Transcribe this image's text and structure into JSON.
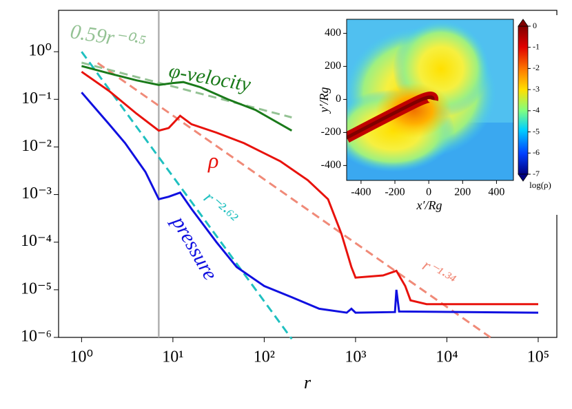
{
  "chart_data": [
    {
      "type": "line",
      "xlabel": "r",
      "xscale": "log",
      "yscale": "log",
      "xlim": [
        0.56,
        160000
      ],
      "ylim": [
        1e-06,
        7.4
      ],
      "xticks": [
        {
          "value": 1,
          "label": "10⁰"
        },
        {
          "value": 10,
          "label": "10¹"
        },
        {
          "value": 100,
          "label": "10²"
        },
        {
          "value": 1000,
          "label": "10³"
        },
        {
          "value": 10000,
          "label": "10⁴"
        },
        {
          "value": 100000,
          "label": "10⁵"
        }
      ],
      "yticks": [
        {
          "value": 1e-06,
          "label": "10⁻⁶"
        },
        {
          "value": 1e-05,
          "label": "10⁻⁵"
        },
        {
          "value": 0.0001,
          "label": "10⁻⁴"
        },
        {
          "value": 0.001,
          "label": "10⁻³"
        },
        {
          "value": 0.01,
          "label": "10⁻²"
        },
        {
          "value": 0.1,
          "label": "10⁻¹"
        },
        {
          "value": 1,
          "label": "10⁰"
        }
      ],
      "vline": {
        "x": 7,
        "color": "#b0b0b0"
      },
      "series": [
        {
          "name": "φ-velocity",
          "color": "#1a7a1a",
          "style": "solid",
          "x": [
            1,
            2,
            4,
            7,
            10,
            13,
            20,
            40,
            80,
            200
          ],
          "values": [
            0.5,
            0.35,
            0.25,
            0.2,
            0.22,
            0.23,
            0.18,
            0.1,
            0.06,
            0.022
          ]
        },
        {
          "name": "ρ",
          "color": "#e8120c",
          "style": "solid",
          "x": [
            1,
            2,
            4,
            7,
            9,
            12,
            16,
            30,
            60,
            150,
            300,
            500,
            700,
            900,
            1000,
            2000,
            2800,
            3500,
            4000,
            6000,
            100000
          ],
          "values": [
            0.38,
            0.15,
            0.05,
            0.022,
            0.025,
            0.045,
            0.03,
            0.02,
            0.012,
            0.005,
            0.002,
            0.0008,
            0.00015,
            3e-05,
            1.8e-05,
            2e-05,
            2.5e-05,
            1.2e-05,
            6e-06,
            5e-06,
            5e-06
          ]
        },
        {
          "name": "pressure",
          "color": "#1010e0",
          "style": "solid",
          "x": [
            1,
            2,
            3,
            5,
            7,
            9,
            12,
            16,
            30,
            50,
            100,
            200,
            400,
            800,
            900,
            1000,
            2700,
            2800,
            3000,
            100000
          ],
          "values": [
            0.14,
            0.03,
            0.012,
            0.003,
            0.0008,
            0.0009,
            0.0011,
            0.0005,
            0.0001,
            3e-05,
            1.2e-05,
            7e-06,
            4e-06,
            3.3e-06,
            4e-06,
            3.3e-06,
            3.4e-06,
            1e-05,
            3.5e-06,
            3.3e-06
          ]
        },
        {
          "name": "0.59r⁻⁰·⁵",
          "color": "#94c294",
          "style": "dashed",
          "x": [
            1,
            200
          ],
          "values": [
            0.59,
            0.0417
          ]
        },
        {
          "name": "r⁻²·⁶²",
          "color": "#1fc0c0",
          "style": "dashed",
          "x": [
            1,
            200
          ],
          "values": [
            1,
            9.3e-07
          ]
        },
        {
          "name": "r⁻¹·³⁴",
          "color": "#f08a78",
          "style": "dashed",
          "x": [
            1.5,
            30000
          ],
          "values": [
            0.58,
            1e-06
          ]
        }
      ]
    },
    {
      "type": "image",
      "xlabel": "x′/Rg",
      "ylabel": "y′/Rg",
      "xlim": [
        -485,
        500
      ],
      "ylim": [
        -490,
        485
      ],
      "xticks": [
        -400,
        -200,
        0,
        200,
        400
      ],
      "yticks": [
        -400,
        -200,
        0,
        200,
        400
      ],
      "colorbar": {
        "label": "log(ρ)",
        "lim": [
          -7,
          0
        ],
        "ticks": [
          0,
          -1,
          -2,
          -3,
          -4,
          -5,
          -6,
          -7
        ]
      }
    }
  ]
}
